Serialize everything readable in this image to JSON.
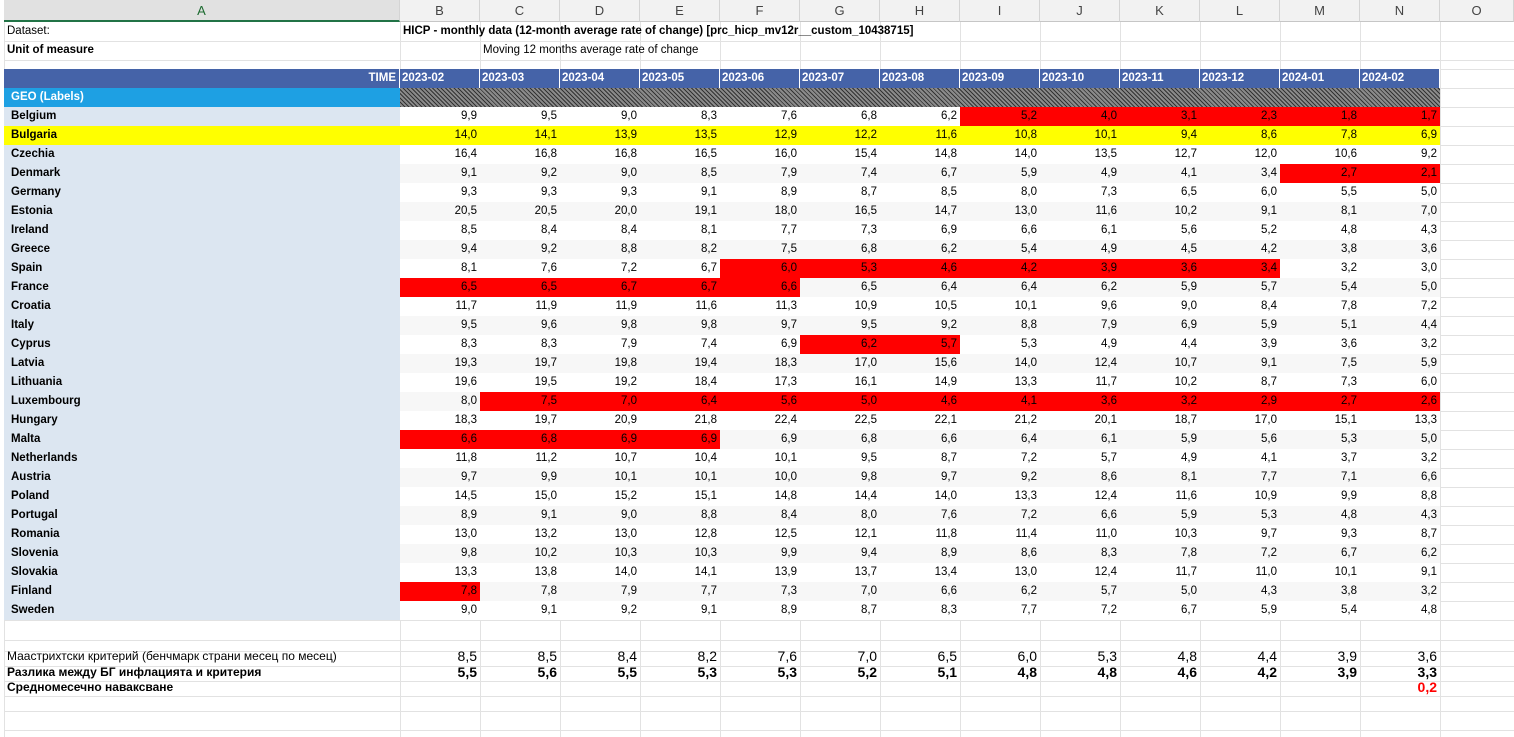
{
  "colors": {
    "red_highlight": "#ff0000",
    "yellow_highlight": "#ffff00",
    "time_header": "#4563a8",
    "geo_header": "#1ea0e3",
    "label_fill": "#dce6f1",
    "accent_red_text": "#ff0000"
  },
  "column_headers": [
    "A",
    "B",
    "C",
    "D",
    "E",
    "F",
    "G",
    "H",
    "I",
    "J",
    "K",
    "L",
    "M",
    "N",
    "O"
  ],
  "meta": {
    "dataset_label": "Dataset:",
    "dataset_value": "HICP - monthly data (12-month average rate of change) [prc_hicp_mv12r__custom_10438715]",
    "unit_label": "Unit of measure",
    "unit_value": "Moving 12 months average rate of change"
  },
  "time_label": "TIME",
  "periods": [
    "2023-02",
    "2023-03",
    "2023-04",
    "2023-05",
    "2023-06",
    "2023-07",
    "2023-08",
    "2023-09",
    "2023-10",
    "2023-11",
    "2023-12",
    "2024-01",
    "2024-02"
  ],
  "geo_label": "GEO (Labels)",
  "rows": [
    {
      "country": "Belgium",
      "values": [
        "9,9",
        "9,5",
        "9,0",
        "8,3",
        "7,6",
        "6,8",
        "6,2",
        "5,2",
        "4,0",
        "3,1",
        "2,3",
        "1,8",
        "1,7"
      ],
      "red": [
        7,
        8,
        9,
        10,
        11,
        12
      ]
    },
    {
      "country": "Bulgaria",
      "values": [
        "14,0",
        "14,1",
        "13,9",
        "13,5",
        "12,9",
        "12,2",
        "11,6",
        "10,8",
        "10,1",
        "9,4",
        "8,6",
        "7,8",
        "6,9"
      ],
      "red": [],
      "yellow": true
    },
    {
      "country": "Czechia",
      "values": [
        "16,4",
        "16,8",
        "16,8",
        "16,5",
        "16,0",
        "15,4",
        "14,8",
        "14,0",
        "13,5",
        "12,7",
        "12,0",
        "10,6",
        "9,2"
      ],
      "red": []
    },
    {
      "country": "Denmark",
      "values": [
        "9,1",
        "9,2",
        "9,0",
        "8,5",
        "7,9",
        "7,4",
        "6,7",
        "5,9",
        "4,9",
        "4,1",
        "3,4",
        "2,7",
        "2,1"
      ],
      "red": [
        11,
        12
      ]
    },
    {
      "country": "Germany",
      "values": [
        "9,3",
        "9,3",
        "9,3",
        "9,1",
        "8,9",
        "8,7",
        "8,5",
        "8,0",
        "7,3",
        "6,5",
        "6,0",
        "5,5",
        "5,0"
      ],
      "red": []
    },
    {
      "country": "Estonia",
      "values": [
        "20,5",
        "20,5",
        "20,0",
        "19,1",
        "18,0",
        "16,5",
        "14,7",
        "13,0",
        "11,6",
        "10,2",
        "9,1",
        "8,1",
        "7,0"
      ],
      "red": []
    },
    {
      "country": "Ireland",
      "values": [
        "8,5",
        "8,4",
        "8,4",
        "8,1",
        "7,7",
        "7,3",
        "6,9",
        "6,6",
        "6,1",
        "5,6",
        "5,2",
        "4,8",
        "4,3"
      ],
      "red": []
    },
    {
      "country": "Greece",
      "values": [
        "9,4",
        "9,2",
        "8,8",
        "8,2",
        "7,5",
        "6,8",
        "6,2",
        "5,4",
        "4,9",
        "4,5",
        "4,2",
        "3,8",
        "3,6"
      ],
      "red": []
    },
    {
      "country": "Spain",
      "values": [
        "8,1",
        "7,6",
        "7,2",
        "6,7",
        "6,0",
        "5,3",
        "4,6",
        "4,2",
        "3,9",
        "3,6",
        "3,4",
        "3,2",
        "3,0"
      ],
      "red": [
        4,
        5,
        6,
        7,
        8,
        9,
        10
      ]
    },
    {
      "country": "France",
      "values": [
        "6,5",
        "6,5",
        "6,7",
        "6,7",
        "6,6",
        "6,5",
        "6,4",
        "6,4",
        "6,2",
        "5,9",
        "5,7",
        "5,4",
        "5,0"
      ],
      "red": [
        0,
        1,
        2,
        3,
        4
      ]
    },
    {
      "country": "Croatia",
      "values": [
        "11,7",
        "11,9",
        "11,9",
        "11,6",
        "11,3",
        "10,9",
        "10,5",
        "10,1",
        "9,6",
        "9,0",
        "8,4",
        "7,8",
        "7,2"
      ],
      "red": []
    },
    {
      "country": "Italy",
      "values": [
        "9,5",
        "9,6",
        "9,8",
        "9,8",
        "9,7",
        "9,5",
        "9,2",
        "8,8",
        "7,9",
        "6,9",
        "5,9",
        "5,1",
        "4,4"
      ],
      "red": []
    },
    {
      "country": "Cyprus",
      "values": [
        "8,3",
        "8,3",
        "7,9",
        "7,4",
        "6,9",
        "6,2",
        "5,7",
        "5,3",
        "4,9",
        "4,4",
        "3,9",
        "3,6",
        "3,2"
      ],
      "red": [
        5,
        6
      ]
    },
    {
      "country": "Latvia",
      "values": [
        "19,3",
        "19,7",
        "19,8",
        "19,4",
        "18,3",
        "17,0",
        "15,6",
        "14,0",
        "12,4",
        "10,7",
        "9,1",
        "7,5",
        "5,9"
      ],
      "red": []
    },
    {
      "country": "Lithuania",
      "values": [
        "19,6",
        "19,5",
        "19,2",
        "18,4",
        "17,3",
        "16,1",
        "14,9",
        "13,3",
        "11,7",
        "10,2",
        "8,7",
        "7,3",
        "6,0"
      ],
      "red": []
    },
    {
      "country": "Luxembourg",
      "values": [
        "8,0",
        "7,5",
        "7,0",
        "6,4",
        "5,6",
        "5,0",
        "4,6",
        "4,1",
        "3,6",
        "3,2",
        "2,9",
        "2,7",
        "2,6"
      ],
      "red": [
        1,
        2,
        3,
        4,
        5,
        6,
        7,
        8,
        9,
        10,
        11,
        12
      ]
    },
    {
      "country": "Hungary",
      "values": [
        "18,3",
        "19,7",
        "20,9",
        "21,8",
        "22,4",
        "22,5",
        "22,1",
        "21,2",
        "20,1",
        "18,7",
        "17,0",
        "15,1",
        "13,3"
      ],
      "red": []
    },
    {
      "country": "Malta",
      "values": [
        "6,6",
        "6,8",
        "6,9",
        "6,9",
        "6,9",
        "6,8",
        "6,6",
        "6,4",
        "6,1",
        "5,9",
        "5,6",
        "5,3",
        "5,0"
      ],
      "red": [
        0,
        1,
        2,
        3
      ]
    },
    {
      "country": "Netherlands",
      "values": [
        "11,8",
        "11,2",
        "10,7",
        "10,4",
        "10,1",
        "9,5",
        "8,7",
        "7,2",
        "5,7",
        "4,9",
        "4,1",
        "3,7",
        "3,2"
      ],
      "red": []
    },
    {
      "country": "Austria",
      "values": [
        "9,7",
        "9,9",
        "10,1",
        "10,1",
        "10,0",
        "9,8",
        "9,7",
        "9,2",
        "8,6",
        "8,1",
        "7,7",
        "7,1",
        "6,6"
      ],
      "red": []
    },
    {
      "country": "Poland",
      "values": [
        "14,5",
        "15,0",
        "15,2",
        "15,1",
        "14,8",
        "14,4",
        "14,0",
        "13,3",
        "12,4",
        "11,6",
        "10,9",
        "9,9",
        "8,8"
      ],
      "red": []
    },
    {
      "country": "Portugal",
      "values": [
        "8,9",
        "9,1",
        "9,0",
        "8,8",
        "8,4",
        "8,0",
        "7,6",
        "7,2",
        "6,6",
        "5,9",
        "5,3",
        "4,8",
        "4,3"
      ],
      "red": []
    },
    {
      "country": "Romania",
      "values": [
        "13,0",
        "13,2",
        "13,0",
        "12,8",
        "12,5",
        "12,1",
        "11,8",
        "11,4",
        "11,0",
        "10,3",
        "9,7",
        "9,3",
        "8,7"
      ],
      "red": []
    },
    {
      "country": "Slovenia",
      "values": [
        "9,8",
        "10,2",
        "10,3",
        "10,3",
        "9,9",
        "9,4",
        "8,9",
        "8,6",
        "8,3",
        "7,8",
        "7,2",
        "6,7",
        "6,2"
      ],
      "red": []
    },
    {
      "country": "Slovakia",
      "values": [
        "13,3",
        "13,8",
        "14,0",
        "14,1",
        "13,9",
        "13,7",
        "13,4",
        "13,0",
        "12,4",
        "11,7",
        "11,0",
        "10,1",
        "9,1"
      ],
      "red": []
    },
    {
      "country": "Finland",
      "values": [
        "7,8",
        "7,8",
        "7,9",
        "7,7",
        "7,3",
        "7,0",
        "6,6",
        "6,2",
        "5,7",
        "5,0",
        "4,3",
        "3,8",
        "3,2"
      ],
      "red": [
        0
      ]
    },
    {
      "country": "Sweden",
      "values": [
        "9,0",
        "9,1",
        "9,2",
        "9,1",
        "8,9",
        "8,7",
        "8,3",
        "7,7",
        "7,2",
        "6,7",
        "5,9",
        "5,4",
        "4,8"
      ],
      "red": []
    }
  ],
  "footer": {
    "criterion_label": "Маастрихтски критерий (бенчмарк страни месец по месец)",
    "criterion_values": [
      "8,5",
      "8,5",
      "8,4",
      "8,2",
      "7,6",
      "7,0",
      "6,5",
      "6,0",
      "5,3",
      "4,8",
      "4,4",
      "3,9",
      "3,6"
    ],
    "diff_label": "Разлика между БГ инфлацията и критерия",
    "diff_values": [
      "5,5",
      "5,6",
      "5,5",
      "5,3",
      "5,3",
      "5,2",
      "5,1",
      "4,8",
      "4,8",
      "4,6",
      "4,2",
      "3,9",
      "3,3"
    ],
    "catchup_label": "Средномесечно наваксване",
    "catchup_value": "0,2"
  }
}
